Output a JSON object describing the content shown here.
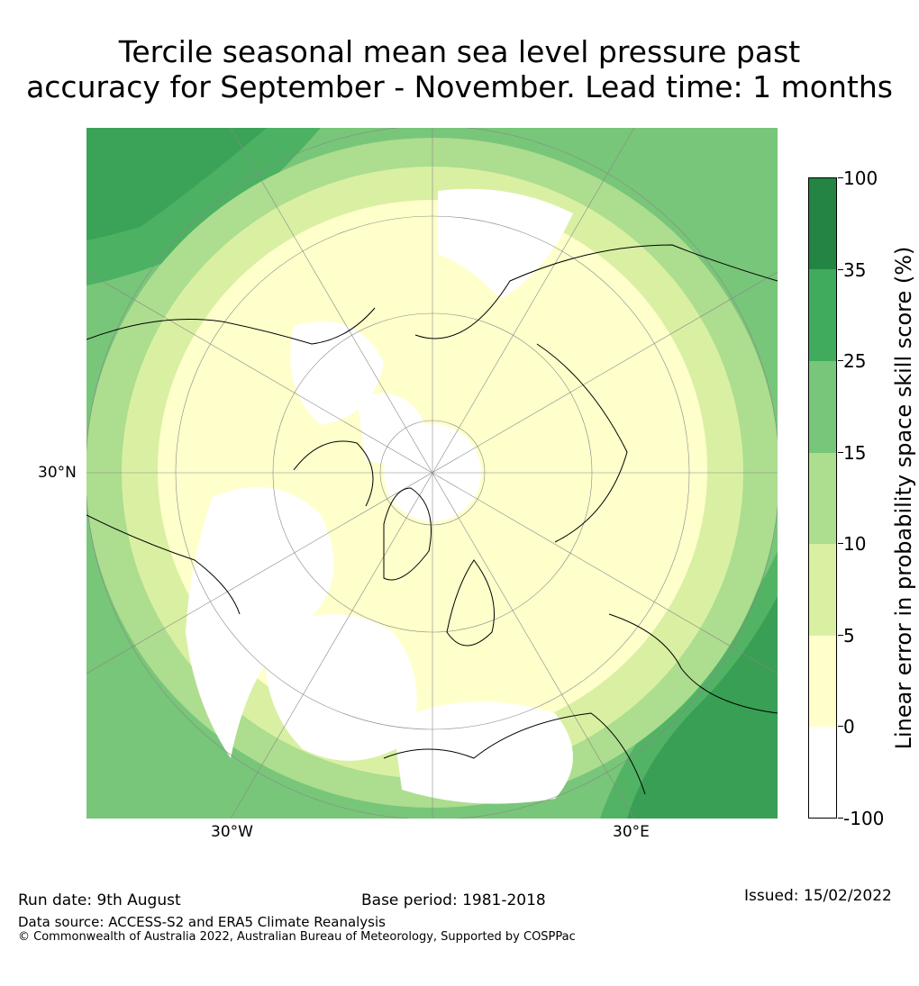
{
  "title_line1": "Tercile seasonal mean sea level pressure past",
  "title_line2": "accuracy for September - November. Lead time: 1 months",
  "map": {
    "lat_label": "30°N",
    "lon_labels": [
      "30°W",
      "30°E"
    ],
    "colors": {
      "ocean_white": "#ffffff",
      "pale_yellow": "#ffffcc",
      "light_yellow_green": "#d9f0a3",
      "light_green": "#addd8e",
      "mid_green": "#78c679",
      "green": "#41ab5d",
      "dark_green": "#238443"
    }
  },
  "colorbar": {
    "label": "Linear error in probability space skill score (%)",
    "ticks": [
      "100",
      "35",
      "25",
      "15",
      "10",
      "5",
      "0",
      "-100"
    ],
    "segments": [
      {
        "range": "35-100",
        "color": "#238443"
      },
      {
        "range": "25-35",
        "color": "#41ab5d"
      },
      {
        "range": "15-25",
        "color": "#78c679"
      },
      {
        "range": "10-15",
        "color": "#addd8e"
      },
      {
        "range": "5-10",
        "color": "#d9f0a3"
      },
      {
        "range": "0-5",
        "color": "#ffffcc"
      },
      {
        "range": "-100-0",
        "color": "#ffffff"
      }
    ]
  },
  "footer": {
    "run_date": "Run date: 9th August",
    "base_period": "Base period: 1981-2018",
    "issued": "Issued: 15/02/2022",
    "data_source": "Data source: ACCESS-S2 and ERA5 Climate Reanalysis",
    "copyright": "© Commonwealth of Australia 2022, Australian Bureau of Meteorology, Supported by COSPPac"
  }
}
